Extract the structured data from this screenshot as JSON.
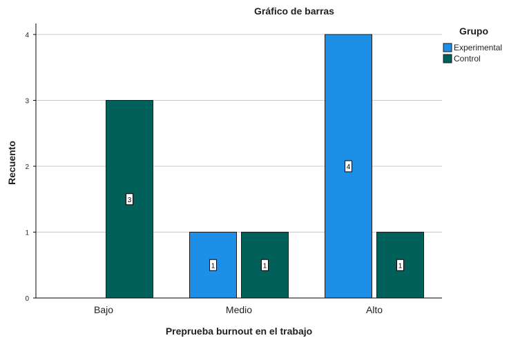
{
  "chart_data": {
    "type": "bar",
    "title": "Gráfico de barras",
    "xlabel": "Preprueba burnout en el trabajo",
    "ylabel": "Recuento",
    "categories": [
      "Bajo",
      "Medio",
      "Alto"
    ],
    "series": [
      {
        "name": "Experimental",
        "color": "#1E8FE6",
        "values": [
          0,
          1,
          4
        ]
      },
      {
        "name": "Control",
        "color": "#00605A",
        "values": [
          3,
          1,
          1
        ]
      }
    ],
    "ylim": [
      0,
      4
    ],
    "yticks": [
      0,
      1,
      2,
      3,
      4
    ],
    "grid": true,
    "legend": {
      "title": "Grupo",
      "position": "top-right"
    }
  }
}
